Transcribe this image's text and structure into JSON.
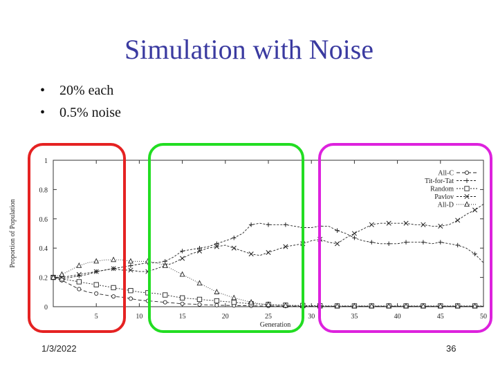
{
  "title": "Simulation with Noise",
  "bullets": [
    {
      "marker": "•",
      "text": "20% each"
    },
    {
      "marker": "•",
      "text": "0.5% noise"
    }
  ],
  "footer": {
    "date": "1/3/2022",
    "page": "36"
  },
  "highlight_colors": [
    "#e52222",
    "#22dd22",
    "#dd22dd"
  ],
  "chart_data": {
    "type": "line",
    "xlabel": "Generation",
    "ylabel": "Proportion of Population",
    "xlim": [
      0,
      50
    ],
    "ylim": [
      0,
      1
    ],
    "x_ticks": [
      5,
      10,
      15,
      20,
      25,
      30,
      35,
      40,
      45,
      50
    ],
    "y_ticks": [
      0,
      0.2,
      0.4,
      0.6,
      0.8,
      1
    ],
    "y_tick_labels": [
      "0",
      "0.2",
      "0.4",
      "0.6",
      "0.8",
      "1"
    ],
    "legend_position": "top-right",
    "x": [
      0,
      1,
      2,
      3,
      4,
      5,
      6,
      7,
      8,
      9,
      10,
      11,
      12,
      13,
      14,
      15,
      16,
      17,
      18,
      19,
      20,
      21,
      22,
      23,
      24,
      25,
      26,
      27,
      28,
      29,
      30,
      31,
      32,
      33,
      34,
      35,
      36,
      37,
      38,
      39,
      40,
      41,
      42,
      43,
      44,
      45,
      46,
      47,
      48,
      49,
      50
    ],
    "series": [
      {
        "name": "All-C",
        "marker": "circle",
        "values": [
          0.2,
          0.18,
          0.15,
          0.12,
          0.1,
          0.09,
          0.08,
          0.07,
          0.065,
          0.055,
          0.045,
          0.04,
          0.035,
          0.03,
          0.025,
          0.02,
          0.018,
          0.015,
          0.012,
          0.01,
          0.009,
          0.008,
          0.007,
          0.006,
          0.005,
          0.005,
          0.004,
          0.004,
          0.003,
          0.003,
          0.003,
          0.003,
          0.003,
          0.003,
          0.003,
          0.003,
          0.003,
          0.003,
          0.003,
          0.003,
          0.003,
          0.003,
          0.003,
          0.003,
          0.003,
          0.003,
          0.003,
          0.003,
          0.003,
          0.003,
          0.003
        ]
      },
      {
        "name": "Tit-for-Tat",
        "marker": "plus",
        "values": [
          0.2,
          0.19,
          0.2,
          0.21,
          0.22,
          0.24,
          0.25,
          0.26,
          0.27,
          0.28,
          0.29,
          0.3,
          0.3,
          0.31,
          0.34,
          0.38,
          0.39,
          0.4,
          0.41,
          0.43,
          0.45,
          0.47,
          0.5,
          0.56,
          0.57,
          0.56,
          0.56,
          0.56,
          0.55,
          0.54,
          0.54,
          0.55,
          0.55,
          0.52,
          0.5,
          0.47,
          0.45,
          0.44,
          0.43,
          0.43,
          0.43,
          0.44,
          0.44,
          0.44,
          0.43,
          0.44,
          0.43,
          0.42,
          0.4,
          0.36,
          0.3
        ]
      },
      {
        "name": "Random",
        "marker": "square",
        "values": [
          0.2,
          0.19,
          0.18,
          0.17,
          0.16,
          0.15,
          0.14,
          0.13,
          0.12,
          0.11,
          0.1,
          0.095,
          0.09,
          0.08,
          0.07,
          0.06,
          0.055,
          0.05,
          0.045,
          0.04,
          0.035,
          0.03,
          0.025,
          0.02,
          0.018,
          0.015,
          0.012,
          0.01,
          0.009,
          0.008,
          0.007,
          0.006,
          0.005,
          0.005,
          0.005,
          0.005,
          0.005,
          0.005,
          0.005,
          0.005,
          0.005,
          0.005,
          0.005,
          0.005,
          0.005,
          0.005,
          0.005,
          0.005,
          0.005,
          0.005,
          0.005
        ]
      },
      {
        "name": "Pavlov",
        "marker": "x",
        "values": [
          0.2,
          0.2,
          0.21,
          0.22,
          0.23,
          0.24,
          0.25,
          0.26,
          0.25,
          0.25,
          0.24,
          0.24,
          0.26,
          0.28,
          0.3,
          0.33,
          0.36,
          0.38,
          0.4,
          0.41,
          0.42,
          0.4,
          0.38,
          0.36,
          0.35,
          0.37,
          0.39,
          0.41,
          0.42,
          0.43,
          0.45,
          0.46,
          0.44,
          0.43,
          0.47,
          0.5,
          0.53,
          0.56,
          0.57,
          0.57,
          0.57,
          0.57,
          0.56,
          0.56,
          0.55,
          0.55,
          0.56,
          0.59,
          0.63,
          0.66,
          0.7
        ]
      },
      {
        "name": "All-D",
        "marker": "triangle",
        "values": [
          0.2,
          0.22,
          0.25,
          0.28,
          0.3,
          0.31,
          0.32,
          0.32,
          0.32,
          0.31,
          0.31,
          0.31,
          0.3,
          0.28,
          0.25,
          0.22,
          0.19,
          0.16,
          0.13,
          0.1,
          0.08,
          0.06,
          0.045,
          0.03,
          0.02,
          0.015,
          0.01,
          0.008,
          0.006,
          0.005,
          0.004,
          0.004,
          0.004,
          0.004,
          0.004,
          0.004,
          0.004,
          0.004,
          0.004,
          0.004,
          0.004,
          0.004,
          0.004,
          0.004,
          0.004,
          0.004,
          0.004,
          0.004,
          0.004,
          0.004,
          0.004
        ]
      }
    ]
  }
}
